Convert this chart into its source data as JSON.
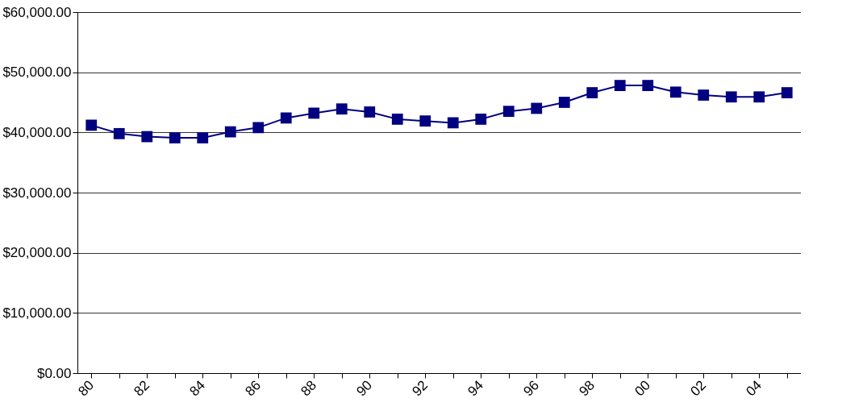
{
  "chart_data": {
    "type": "line",
    "categories": [
      "80",
      null,
      "82",
      null,
      "84",
      null,
      "86",
      null,
      "88",
      null,
      "90",
      null,
      "92",
      null,
      "94",
      null,
      "96",
      null,
      "98",
      null,
      "00",
      null,
      "02",
      null,
      "04",
      null
    ],
    "series": [
      {
        "color": "#000080",
        "values": [
          41200,
          39800,
          39300,
          39100,
          39100,
          40100,
          40800,
          42400,
          43200,
          43900,
          43400,
          42200,
          41900,
          41600,
          42200,
          43500,
          44000,
          45000,
          46600,
          47800,
          47800,
          46700,
          46200,
          45900,
          45900,
          46600
        ]
      }
    ],
    "ylim": [
      0,
      60000
    ],
    "yticks": [
      {
        "value": 0,
        "label": "$0.00"
      },
      {
        "value": 10000,
        "label": "$10,000.00"
      },
      {
        "value": 20000,
        "label": "$20,000.00"
      },
      {
        "value": 30000,
        "label": "$30,000.00"
      },
      {
        "value": 40000,
        "label": "$40,000.00"
      },
      {
        "value": 50000,
        "label": "$50,000.00"
      },
      {
        "value": 60000,
        "label": "$60,000.00"
      }
    ],
    "grid": "y",
    "marker": "square",
    "line_style": "solid",
    "legend": false
  }
}
